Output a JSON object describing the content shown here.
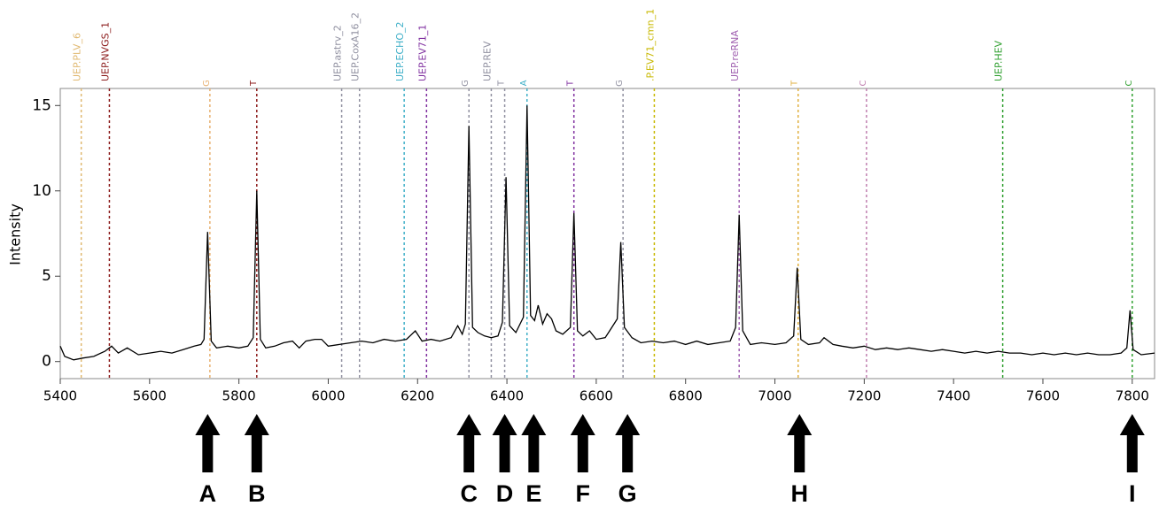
{
  "chart_data": {
    "type": "line",
    "y_label": "Intensity",
    "color": "#000000",
    "xlim": [
      5400,
      7850
    ],
    "ylim": [
      -1,
      16
    ],
    "xticks": [
      5400,
      5600,
      5800,
      6000,
      6200,
      6400,
      6600,
      6800,
      7000,
      7200,
      7400,
      7600,
      7800
    ],
    "yticks": [
      0,
      5,
      10,
      15
    ],
    "x": [
      5400,
      5410,
      5430,
      5450,
      5475,
      5500,
      5515,
      5530,
      5550,
      5575,
      5600,
      5625,
      5650,
      5675,
      5700,
      5715,
      5722,
      5730,
      5738,
      5750,
      5775,
      5800,
      5820,
      5832,
      5840,
      5848,
      5860,
      5880,
      5900,
      5920,
      5935,
      5950,
      5970,
      5985,
      6000,
      6025,
      6050,
      6075,
      6100,
      6125,
      6150,
      6175,
      6195,
      6210,
      6230,
      6250,
      6275,
      6290,
      6300,
      6307,
      6315,
      6323,
      6335,
      6350,
      6365,
      6380,
      6390,
      6398,
      6406,
      6420,
      6437,
      6445,
      6453,
      6462,
      6470,
      6480,
      6490,
      6500,
      6510,
      6525,
      6542,
      6550,
      6558,
      6570,
      6585,
      6600,
      6620,
      6630,
      6647,
      6655,
      6663,
      6680,
      6700,
      6725,
      6750,
      6775,
      6800,
      6825,
      6850,
      6875,
      6900,
      6912,
      6920,
      6928,
      6945,
      6970,
      7000,
      7025,
      7042,
      7050,
      7058,
      7075,
      7100,
      7110,
      7130,
      7150,
      7175,
      7200,
      7225,
      7250,
      7275,
      7300,
      7325,
      7350,
      7375,
      7400,
      7425,
      7450,
      7475,
      7500,
      7525,
      7550,
      7575,
      7600,
      7625,
      7650,
      7675,
      7700,
      7725,
      7750,
      7775,
      7788,
      7795,
      7802,
      7820,
      7850
    ],
    "values": [
      0.9,
      0.3,
      0.1,
      0.2,
      0.3,
      0.6,
      0.9,
      0.5,
      0.8,
      0.4,
      0.5,
      0.6,
      0.5,
      0.7,
      0.9,
      1.0,
      1.3,
      7.6,
      1.2,
      0.8,
      0.9,
      0.8,
      0.9,
      1.4,
      10.0,
      1.3,
      0.8,
      0.9,
      1.1,
      1.2,
      0.8,
      1.2,
      1.3,
      1.3,
      0.9,
      1.0,
      1.1,
      1.2,
      1.1,
      1.3,
      1.2,
      1.3,
      1.8,
      1.2,
      1.3,
      1.2,
      1.4,
      2.1,
      1.6,
      2.2,
      13.8,
      2.0,
      1.7,
      1.5,
      1.4,
      1.5,
      2.3,
      10.8,
      2.1,
      1.7,
      2.6,
      15.0,
      2.7,
      2.4,
      3.3,
      2.2,
      2.8,
      2.5,
      1.8,
      1.6,
      2.0,
      8.7,
      1.8,
      1.5,
      1.8,
      1.3,
      1.4,
      1.8,
      2.5,
      7.0,
      2.0,
      1.4,
      1.1,
      1.2,
      1.1,
      1.2,
      1.0,
      1.2,
      1.0,
      1.1,
      1.2,
      2.0,
      8.6,
      1.8,
      1.0,
      1.1,
      1.0,
      1.1,
      1.5,
      5.5,
      1.3,
      1.0,
      1.1,
      1.4,
      1.0,
      0.9,
      0.8,
      0.9,
      0.7,
      0.8,
      0.7,
      0.8,
      0.7,
      0.6,
      0.7,
      0.6,
      0.5,
      0.6,
      0.5,
      0.6,
      0.5,
      0.5,
      0.4,
      0.5,
      0.4,
      0.5,
      0.4,
      0.5,
      0.4,
      0.4,
      0.5,
      0.8,
      3.0,
      0.7,
      0.4,
      0.5
    ],
    "markers": [
      {
        "label": "UEP.PLV_6",
        "x": 5447,
        "color": "#e0b870"
      },
      {
        "label": "UEP.NVGS_1",
        "x": 5510,
        "color": "#8b1a1a"
      },
      {
        "label": "G",
        "x": 5735,
        "color": "#e8b070"
      },
      {
        "label": "T",
        "x": 5840,
        "color": "#8b1a1a"
      },
      {
        "label": "UEP.astrv_2",
        "x": 6030,
        "color": "#9090a0"
      },
      {
        "label": "UEP.CoxA16_2",
        "x": 6070,
        "color": "#9090a0"
      },
      {
        "label": "UEP.ECHO_2",
        "x": 6170,
        "color": "#40b0c8"
      },
      {
        "label": "UEP.EV71_1",
        "x": 6220,
        "color": "#8030a0"
      },
      {
        "label": "G",
        "x": 6315,
        "color": "#9090a0"
      },
      {
        "label": "UEP.REV",
        "x": 6365,
        "color": "#9090a0"
      },
      {
        "label": "T",
        "x": 6395,
        "color": "#9090a0"
      },
      {
        "label": "A",
        "x": 6445,
        "color": "#40b0c8"
      },
      {
        "label": "T",
        "x": 6550,
        "color": "#8030a0"
      },
      {
        "label": "G",
        "x": 6660,
        "color": "#9090a0"
      },
      {
        "label": ".P.EV71_cmn_1",
        "x": 6730,
        "color": "#c8b800"
      },
      {
        "label": "UEP.reRNA",
        "x": 6920,
        "color": "#a060b0"
      },
      {
        "label": "T",
        "x": 7052,
        "color": "#e0b040"
      },
      {
        "label": "C",
        "x": 7205,
        "color": "#c080b0"
      },
      {
        "label": "UEP.HEV",
        "x": 7510,
        "color": "#30a030"
      },
      {
        "label": "C",
        "x": 7800,
        "color": "#30a030"
      }
    ],
    "annotations": [
      {
        "label": "A",
        "x": 5730
      },
      {
        "label": "B",
        "x": 5840
      },
      {
        "label": "C",
        "x": 6315
      },
      {
        "label": "D",
        "x": 6395
      },
      {
        "label": "E",
        "x": 6460
      },
      {
        "label": "F",
        "x": 6570
      },
      {
        "label": "G",
        "x": 6670
      },
      {
        "label": "H",
        "x": 7055
      },
      {
        "label": "I",
        "x": 7800
      }
    ]
  }
}
